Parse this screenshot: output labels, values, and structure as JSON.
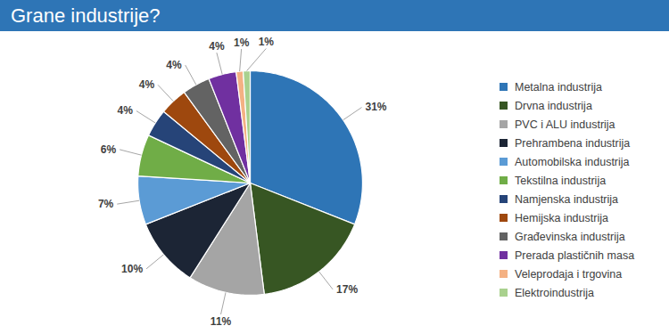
{
  "chart_data": {
    "type": "pie",
    "title": "Grane industrije?",
    "categories": [
      "Metalna industrija",
      "Drvna industrija",
      "PVC i ALU industrija",
      "Prehrambena industrija",
      "Automobilska industrija",
      "Tekstilna industrija",
      "Namjenska industrija",
      "Hemijska industrija",
      "Građevinska industrija",
      "Prerada plastičnih masa",
      "Veleprodaja i trgovina",
      "Elektroindustrija"
    ],
    "values": [
      31,
      17,
      11,
      10,
      7,
      6,
      4,
      4,
      4,
      4,
      1,
      1
    ],
    "value_labels": [
      "31%",
      "17%",
      "11%",
      "10%",
      "7%",
      "6%",
      "4%",
      "4%",
      "4%",
      "4%",
      "1%",
      "1%"
    ],
    "colors": [
      "#2e75b6",
      "#375623",
      "#a5a5a5",
      "#1c2535",
      "#5b9bd5",
      "#70ad47",
      "#264478",
      "#9e480e",
      "#636363",
      "#7030a0",
      "#f4b183",
      "#a9d18e"
    ],
    "data_labels": true,
    "legend": "right"
  }
}
